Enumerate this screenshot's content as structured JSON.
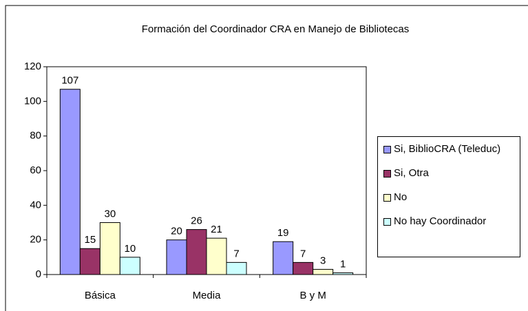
{
  "chart_data": {
    "type": "bar",
    "title": "Formación del Coordinador CRA en Manejo de Bibliotecas",
    "categories": [
      "Básica",
      "Media",
      "B y M"
    ],
    "series": [
      {
        "name": "Si, BiblioCRA (Teleduc)",
        "color": "#9999ff",
        "values": [
          107,
          20,
          19
        ]
      },
      {
        "name": "Si, Otra",
        "color": "#993366",
        "values": [
          15,
          26,
          7
        ]
      },
      {
        "name": "No",
        "color": "#ffffcc",
        "values": [
          30,
          21,
          3
        ]
      },
      {
        "name": "No hay Coordinador",
        "color": "#ccffff",
        "values": [
          10,
          7,
          1
        ]
      }
    ],
    "ylim": [
      0,
      120
    ],
    "yticks": [
      0,
      20,
      40,
      60,
      80,
      100,
      120
    ],
    "legend": "right"
  }
}
